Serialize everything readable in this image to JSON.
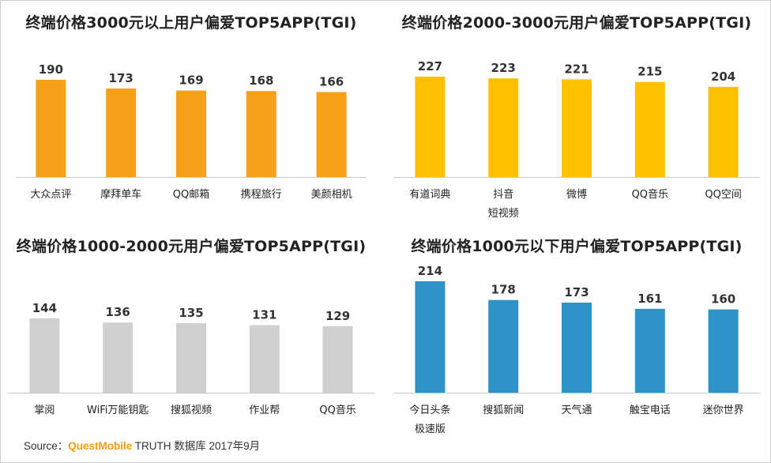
{
  "chart_data": [
    {
      "type": "bar",
      "title": "终端价格3000元以上用户偏爱TOP5APP(TGI)",
      "categories": [
        "大众点评",
        "摩拜单车",
        "QQ邮箱",
        "携程旅行",
        "美颜相机"
      ],
      "values": [
        190,
        173,
        169,
        168,
        166
      ],
      "color": "#f7a11a",
      "ylim": [
        0,
        190
      ],
      "grid": false,
      "legend": false
    },
    {
      "type": "bar",
      "title": "终端价格2000-3000元用户偏爱TOP5APP(TGI)",
      "categories": [
        "有道词典",
        "抖音短视频",
        "微博",
        "QQ音乐",
        "QQ空间"
      ],
      "category_lines": [
        [
          "有道词典"
        ],
        [
          "抖音",
          "短视频"
        ],
        [
          "微博"
        ],
        [
          "QQ音乐"
        ],
        [
          "QQ空间"
        ]
      ],
      "values": [
        227,
        223,
        221,
        215,
        204
      ],
      "color": "#ffc000",
      "ylim": [
        0,
        227
      ],
      "grid": false,
      "legend": false
    },
    {
      "type": "bar",
      "title": "终端价格1000-2000元用户偏爱TOP5APP(TGI)",
      "categories": [
        "掌阅",
        "WiFi万能钥匙",
        "搜狐视频",
        "作业帮",
        "QQ音乐"
      ],
      "values": [
        144,
        136,
        135,
        131,
        129
      ],
      "color": "#d0d0d0",
      "ylim": [
        0,
        144
      ],
      "grid": false,
      "legend": false
    },
    {
      "type": "bar",
      "title": "终端价格1000元以下用户偏爱TOP5APP(TGI)",
      "categories": [
        "今日头条极速版",
        "搜狐新闻",
        "天气通",
        "触宝电话",
        "迷你世界"
      ],
      "category_lines": [
        [
          "今日头条",
          "极速版"
        ],
        [
          "搜狐新闻"
        ],
        [
          "天气通"
        ],
        [
          "触宝电话"
        ],
        [
          "迷你世界"
        ]
      ],
      "values": [
        214,
        178,
        173,
        161,
        160
      ],
      "color": "#2e93c7",
      "ylim": [
        0,
        214
      ],
      "grid": false,
      "legend": false
    }
  ],
  "source": {
    "prefix": "Source：",
    "brand": "QuestMobile",
    "suffix": " TRUTH 数据库 2017年9月"
  }
}
